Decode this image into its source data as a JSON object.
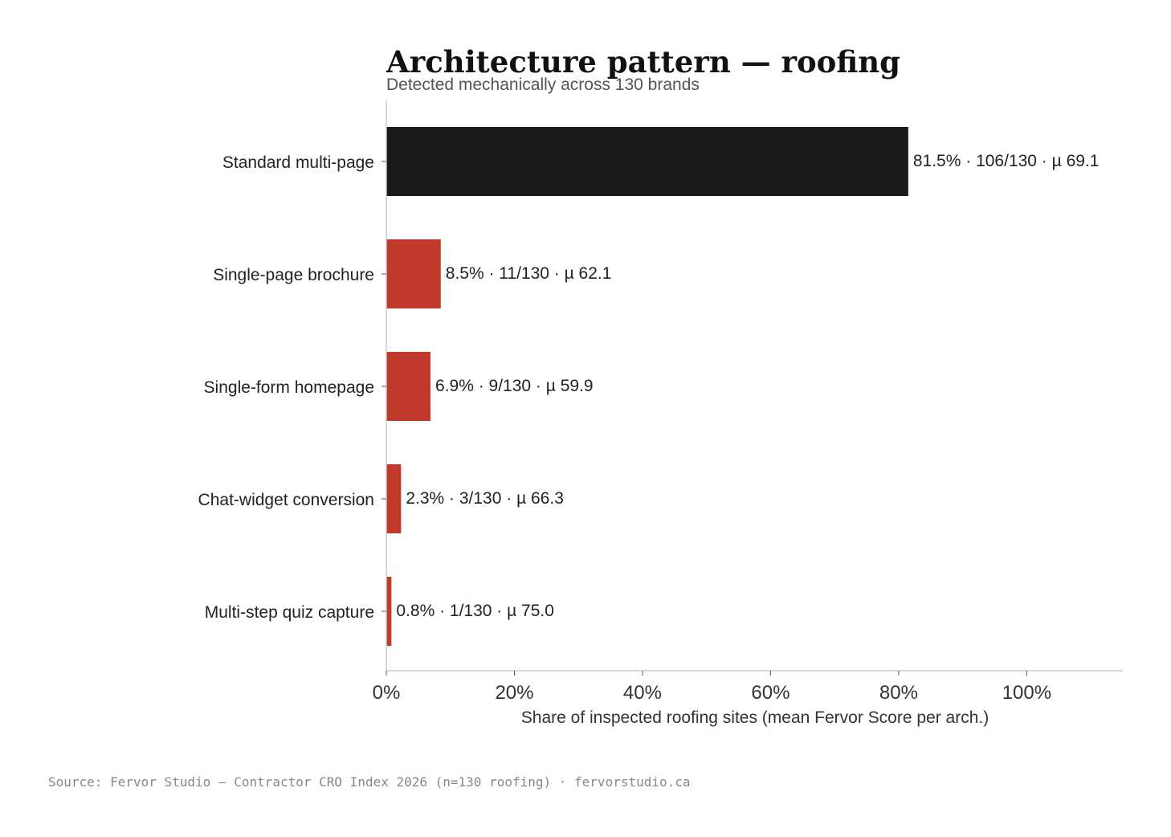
{
  "chart_data": {
    "type": "bar",
    "orientation": "horizontal",
    "title": "Architecture pattern — roofing",
    "subtitle": "Detected mechanically across 130 brands",
    "xlabel": "Share of inspected roofing sites (mean Fervor Score per arch.)",
    "ylabel": "",
    "xlim": [
      0,
      115
    ],
    "x_ticks": [
      0,
      20,
      40,
      60,
      80,
      100
    ],
    "x_tick_labels": [
      "0%",
      "20%",
      "40%",
      "60%",
      "80%",
      "100%"
    ],
    "grid": false,
    "legend": "none",
    "categories": [
      "Standard multi-page",
      "Single-page brochure",
      "Single-form homepage",
      "Chat-widget conversion",
      "Multi-step quiz capture"
    ],
    "values": [
      81.5,
      8.5,
      6.9,
      2.3,
      0.8
    ],
    "counts": [
      "106/130",
      "11/130",
      "9/130",
      "3/130",
      "1/130"
    ],
    "mean_scores": [
      69.1,
      62.1,
      59.9,
      66.3,
      75.0
    ],
    "data_labels": [
      "81.5% · 106/130 · µ 69.1",
      "8.5% · 11/130 · µ 62.1",
      "6.9% · 9/130 · µ 59.9",
      "2.3% · 3/130 · µ 66.3",
      "0.8% · 1/130 · µ 75.0"
    ],
    "colors": {
      "highlight": "#1b1b1b",
      "default": "#c0392b",
      "axis": "#cccccc"
    },
    "highlight_index": 0
  },
  "source": "Source: Fervor Studio — Contractor CRO Index 2026 (n=130 roofing) · fervorstudio.ca"
}
